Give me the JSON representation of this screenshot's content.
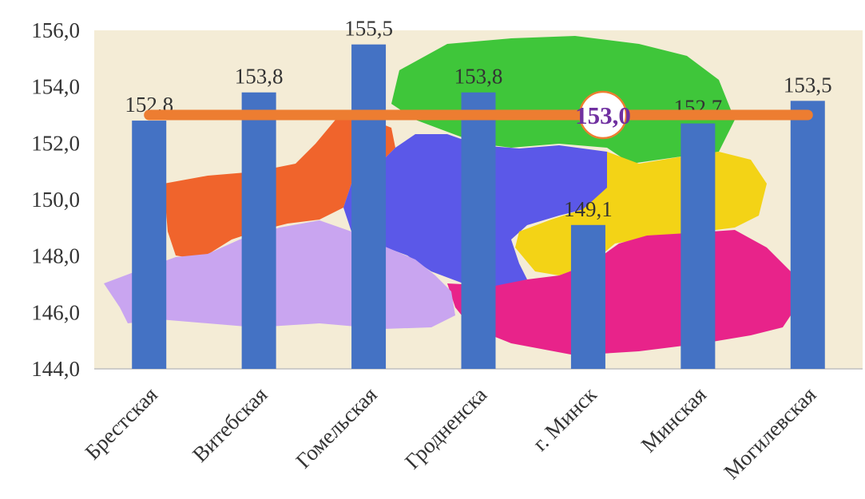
{
  "chart_data": {
    "type": "bar",
    "categories": [
      "Брестская",
      "Витебская",
      "Гомельская",
      "Гродненска",
      "г. Минск",
      "Минская",
      "Могилевская"
    ],
    "values": [
      152.8,
      153.8,
      155.5,
      153.8,
      149.1,
      152.7,
      153.5
    ],
    "value_labels": [
      "152,8",
      "153,8",
      "155,5",
      "153,8",
      "149,1",
      "152,7",
      "153,5"
    ],
    "ylim": [
      144,
      156
    ],
    "y_ticks": [
      144,
      146,
      148,
      150,
      152,
      154,
      156
    ],
    "y_tick_labels": [
      "144,0",
      "146,0",
      "148,0",
      "150,0",
      "152,0",
      "154,0",
      "156,0"
    ],
    "reference_line": {
      "value": 153.0,
      "label": "153,0",
      "color": "#ed7d31"
    },
    "colors": {
      "bar": "#4472c4",
      "label_accent": "#7030a0"
    },
    "background": "map of Belarus regions",
    "grid": false,
    "legend": "none"
  }
}
